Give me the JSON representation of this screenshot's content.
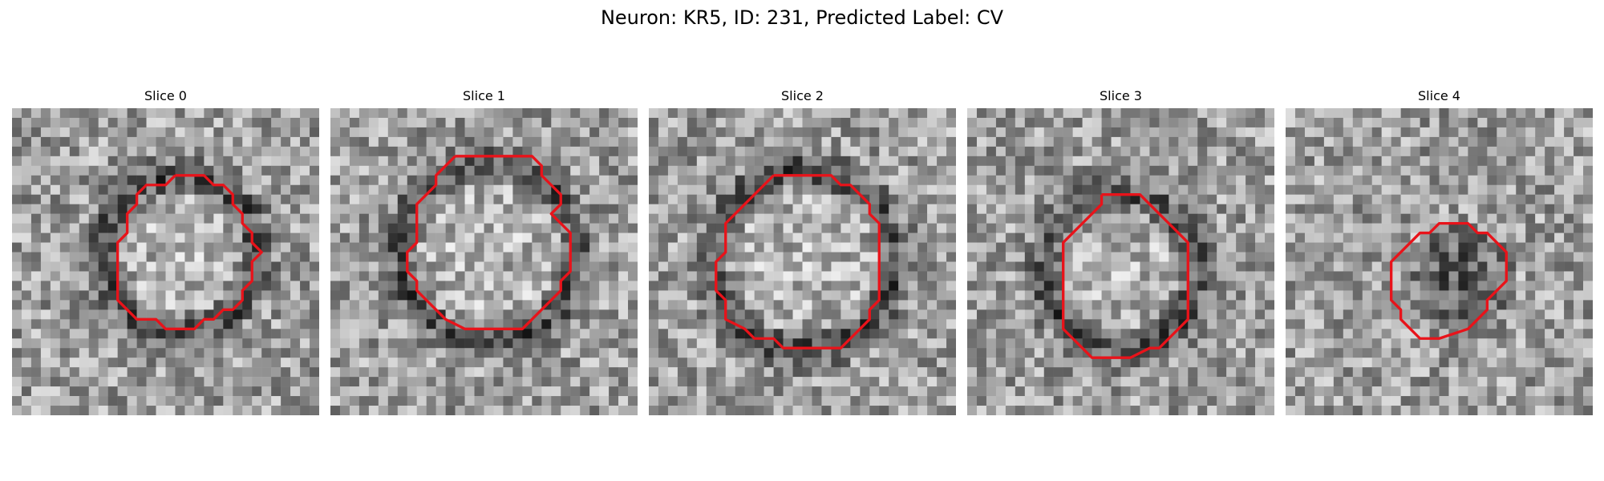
{
  "figure": {
    "title": "Neuron: KR5, ID: 231, Predicted Label: CV",
    "outline_color": "#e8131a",
    "colormap": "grayscale"
  },
  "slices": [
    {
      "title": "Slice 0",
      "grid_size": 32,
      "region": {
        "center": [
          17.5,
          15.2
        ],
        "radius": 8.1,
        "type": "bright-center"
      },
      "contour": [
        [
          17,
          7
        ],
        [
          20,
          7
        ],
        [
          21,
          8
        ],
        [
          22,
          8
        ],
        [
          23,
          9
        ],
        [
          23,
          10
        ],
        [
          24,
          11
        ],
        [
          24,
          12
        ],
        [
          25,
          13
        ],
        [
          25,
          14
        ],
        [
          26,
          15
        ],
        [
          25,
          16
        ],
        [
          25,
          18
        ],
        [
          24,
          19
        ],
        [
          24,
          20
        ],
        [
          23,
          21
        ],
        [
          22,
          21
        ],
        [
          21,
          22
        ],
        [
          20,
          22
        ],
        [
          19,
          23
        ],
        [
          16,
          23
        ],
        [
          15,
          22
        ],
        [
          13,
          22
        ],
        [
          12,
          21
        ],
        [
          11,
          20
        ],
        [
          11,
          17
        ],
        [
          11,
          14
        ],
        [
          12,
          13
        ],
        [
          12,
          11
        ],
        [
          13,
          10
        ],
        [
          13,
          9
        ],
        [
          14,
          8
        ],
        [
          15,
          8
        ],
        [
          16,
          8
        ],
        [
          17,
          7
        ]
      ]
    },
    {
      "title": "Slice 1",
      "grid_size": 32,
      "region": {
        "center": [
          16.5,
          15.0
        ],
        "radius": 9.2,
        "type": "bright-center"
      },
      "contour": [
        [
          13,
          5
        ],
        [
          18,
          5
        ],
        [
          21,
          5
        ],
        [
          22,
          6
        ],
        [
          22,
          7
        ],
        [
          23,
          8
        ],
        [
          24,
          9
        ],
        [
          24,
          10
        ],
        [
          23,
          11
        ],
        [
          24,
          12
        ],
        [
          25,
          13
        ],
        [
          25,
          17
        ],
        [
          24,
          18
        ],
        [
          24,
          19
        ],
        [
          23,
          20
        ],
        [
          22,
          21
        ],
        [
          21,
          22
        ],
        [
          20,
          23
        ],
        [
          14,
          23
        ],
        [
          12,
          22
        ],
        [
          11,
          21
        ],
        [
          10,
          20
        ],
        [
          9,
          19
        ],
        [
          9,
          18
        ],
        [
          8,
          17
        ],
        [
          8,
          15
        ],
        [
          9,
          14
        ],
        [
          9,
          11
        ],
        [
          9,
          10
        ],
        [
          10,
          9
        ],
        [
          11,
          8
        ],
        [
          11,
          7
        ],
        [
          12,
          6
        ],
        [
          13,
          5
        ]
      ]
    },
    {
      "title": "Slice 2",
      "grid_size": 32,
      "region": {
        "center": [
          16.2,
          15.8
        ],
        "radius": 9.4,
        "type": "bright-center"
      },
      "contour": [
        [
          13,
          7
        ],
        [
          17,
          7
        ],
        [
          19,
          7
        ],
        [
          20,
          8
        ],
        [
          21,
          8
        ],
        [
          22,
          9
        ],
        [
          23,
          10
        ],
        [
          23,
          11
        ],
        [
          24,
          12
        ],
        [
          24,
          20
        ],
        [
          23,
          21
        ],
        [
          23,
          22
        ],
        [
          22,
          23
        ],
        [
          21,
          24
        ],
        [
          20,
          25
        ],
        [
          14,
          25
        ],
        [
          13,
          24
        ],
        [
          11,
          24
        ],
        [
          10,
          23
        ],
        [
          8,
          22
        ],
        [
          8,
          20
        ],
        [
          7,
          19
        ],
        [
          7,
          16
        ],
        [
          8,
          15
        ],
        [
          8,
          12
        ],
        [
          9,
          11
        ],
        [
          10,
          10
        ],
        [
          11,
          9
        ],
        [
          12,
          8
        ],
        [
          13,
          7
        ]
      ]
    },
    {
      "title": "Slice 3",
      "grid_size": 32,
      "region": {
        "center": [
          16.0,
          17.0
        ],
        "radius": 8.0,
        "type": "bright-center"
      },
      "contour": [
        [
          14,
          9
        ],
        [
          18,
          9
        ],
        [
          19,
          10
        ],
        [
          20,
          11
        ],
        [
          21,
          12
        ],
        [
          22,
          13
        ],
        [
          23,
          14
        ],
        [
          23,
          22
        ],
        [
          22,
          23
        ],
        [
          21,
          24
        ],
        [
          20,
          25
        ],
        [
          19,
          25
        ],
        [
          17,
          26
        ],
        [
          13,
          26
        ],
        [
          12,
          25
        ],
        [
          11,
          24
        ],
        [
          10,
          23
        ],
        [
          10,
          21
        ],
        [
          10,
          14
        ],
        [
          11,
          13
        ],
        [
          12,
          12
        ],
        [
          13,
          11
        ],
        [
          14,
          10
        ],
        [
          14,
          9
        ]
      ]
    },
    {
      "title": "Slice 4",
      "grid_size": 32,
      "region": {
        "center": [
          18.0,
          17.8
        ],
        "radius": 5.8,
        "type": "dark-center"
      },
      "contour": [
        [
          17,
          12
        ],
        [
          19,
          12
        ],
        [
          20,
          13
        ],
        [
          21,
          13
        ],
        [
          22,
          14
        ],
        [
          23,
          15
        ],
        [
          23,
          18
        ],
        [
          22,
          19
        ],
        [
          21,
          20
        ],
        [
          21,
          21
        ],
        [
          20,
          22
        ],
        [
          19,
          23
        ],
        [
          16,
          24
        ],
        [
          14,
          24
        ],
        [
          13,
          23
        ],
        [
          12,
          22
        ],
        [
          12,
          21
        ],
        [
          11,
          20
        ],
        [
          11,
          16
        ],
        [
          12,
          15
        ],
        [
          13,
          14
        ],
        [
          14,
          13
        ],
        [
          15,
          13
        ],
        [
          16,
          12
        ],
        [
          17,
          12
        ]
      ]
    }
  ]
}
